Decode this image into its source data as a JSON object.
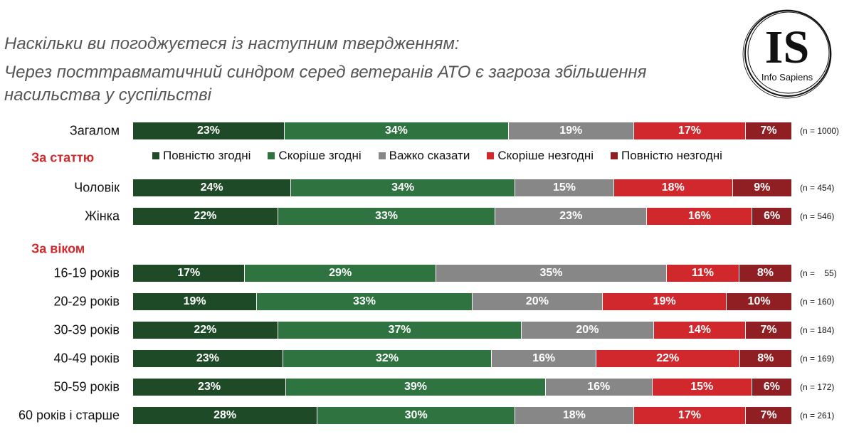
{
  "chart_data": {
    "type": "bar",
    "orientation": "horizontal-stacked-100",
    "title": "Наскільки ви погоджуєтеся із наступним твердженням:",
    "subtitle": "Через посттравматичний синдром серед ветеранів АТО є загроза збільшення насильства у суспільстві",
    "legend_position": "top",
    "series": [
      {
        "name": "Повністю згодні",
        "color": "#1f4a27"
      },
      {
        "name": "Скоріше згодні",
        "color": "#2e7340"
      },
      {
        "name": "Важко сказати",
        "color": "#878787"
      },
      {
        "name": "Скоріше незгодні",
        "color": "#d0282c"
      },
      {
        "name": "Повністю незгодні",
        "color": "#8f1f23"
      }
    ],
    "sections": {
      "gender": "За статтю",
      "age": "За віком"
    },
    "rows": [
      {
        "label": "Загалом",
        "values": [
          23,
          34,
          19,
          17,
          7
        ],
        "n": "(n = 1000)"
      },
      {
        "label": "Чоловік",
        "values": [
          24,
          34,
          15,
          18,
          9
        ],
        "n": "(n = 454)"
      },
      {
        "label": "Жінка",
        "values": [
          22,
          33,
          23,
          16,
          6
        ],
        "n": "(n = 546)"
      },
      {
        "label": "16-19 років",
        "values": [
          17,
          29,
          35,
          11,
          8
        ],
        "n": "(n =    55)"
      },
      {
        "label": "20-29 років",
        "values": [
          19,
          33,
          20,
          19,
          10
        ],
        "n": "(n = 160)"
      },
      {
        "label": "30-39 років",
        "values": [
          22,
          37,
          20,
          14,
          7
        ],
        "n": "(n = 184)"
      },
      {
        "label": "40-49 років",
        "values": [
          23,
          32,
          16,
          22,
          8
        ],
        "n": "(n = 169)"
      },
      {
        "label": "50-59 років",
        "values": [
          23,
          39,
          16,
          15,
          6
        ],
        "n": "(n = 172)"
      },
      {
        "label": "60 років і старше",
        "values": [
          28,
          30,
          18,
          17,
          7
        ],
        "n": "(n = 261)"
      }
    ]
  },
  "logo": {
    "letters": "IS",
    "text": "Info Sapiens"
  }
}
